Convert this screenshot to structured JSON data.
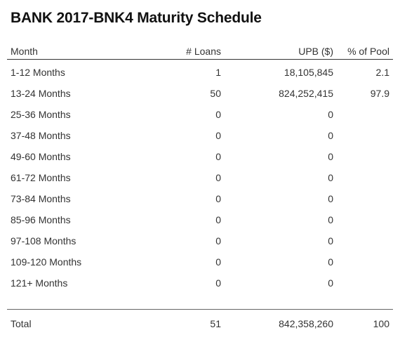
{
  "title": "BANK 2017-BNK4 Maturity Schedule",
  "columns": {
    "month": "Month",
    "loans": "# Loans",
    "upb": "UPB ($)",
    "pool": "% of Pool"
  },
  "rows": [
    {
      "month": "1-12 Months",
      "loans": "1",
      "upb": "18,105,845",
      "pool": "2.1"
    },
    {
      "month": "13-24 Months",
      "loans": "50",
      "upb": "824,252,415",
      "pool": "97.9"
    },
    {
      "month": "25-36 Months",
      "loans": "0",
      "upb": "0",
      "pool": ""
    },
    {
      "month": "37-48 Months",
      "loans": "0",
      "upb": "0",
      "pool": ""
    },
    {
      "month": "49-60 Months",
      "loans": "0",
      "upb": "0",
      "pool": ""
    },
    {
      "month": "61-72 Months",
      "loans": "0",
      "upb": "0",
      "pool": ""
    },
    {
      "month": "73-84 Months",
      "loans": "0",
      "upb": "0",
      "pool": ""
    },
    {
      "month": "85-96 Months",
      "loans": "0",
      "upb": "0",
      "pool": ""
    },
    {
      "month": "97-108 Months",
      "loans": "0",
      "upb": "0",
      "pool": ""
    },
    {
      "month": "109-120 Months",
      "loans": "0",
      "upb": "0",
      "pool": ""
    },
    {
      "month": "121+ Months",
      "loans": "0",
      "upb": "0",
      "pool": ""
    }
  ],
  "total": {
    "month": "Total",
    "loans": "51",
    "upb": "842,358,260",
    "pool": "100"
  }
}
